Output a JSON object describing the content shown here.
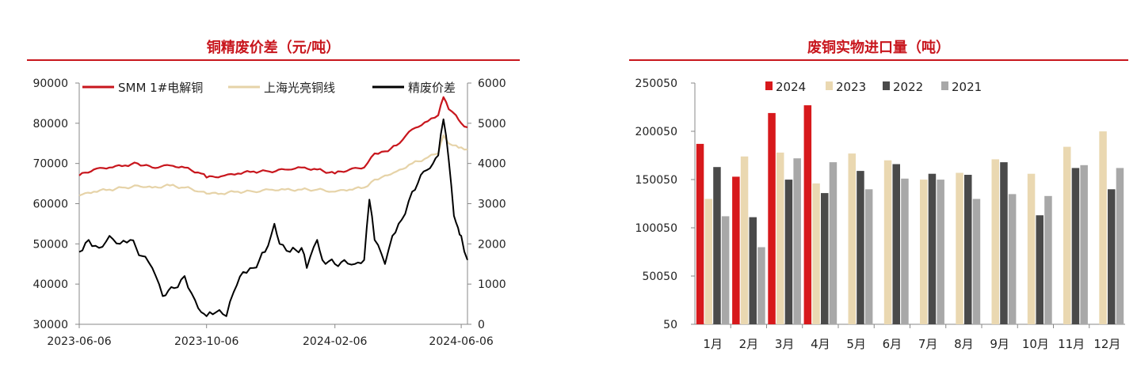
{
  "chart_data": [
    {
      "type": "line",
      "title": "铜精废价差（元/吨）",
      "x_ticks": [
        "2023-06-06",
        "2023-10-06",
        "2024-02-06",
        "2024-06-06"
      ],
      "x_range": [
        "2023-06-06",
        "2024-06-12"
      ],
      "y_left": {
        "min": 30000,
        "max": 90000,
        "ticks": [
          30000,
          40000,
          50000,
          60000,
          70000,
          80000,
          90000
        ]
      },
      "y_right": {
        "min": 0,
        "max": 6000,
        "ticks": [
          0,
          1000,
          2000,
          3000,
          4000,
          5000,
          6000
        ]
      },
      "legend_position": "top",
      "series": [
        {
          "name": "SMM 1#电解铜",
          "axis": "left",
          "color": "#c8161d",
          "points": [
            [
              "2023-06-06",
              67000
            ],
            [
              "2023-06-20",
              68500
            ],
            [
              "2023-07-05",
              69000
            ],
            [
              "2023-07-20",
              69500
            ],
            [
              "2023-08-01",
              70000
            ],
            [
              "2023-08-15",
              69000
            ],
            [
              "2023-09-01",
              69500
            ],
            [
              "2023-09-15",
              69000
            ],
            [
              "2023-10-01",
              67500
            ],
            [
              "2023-10-06",
              66500
            ],
            [
              "2023-10-20",
              66800
            ],
            [
              "2023-11-05",
              67500
            ],
            [
              "2023-11-20",
              68000
            ],
            [
              "2023-12-05",
              68000
            ],
            [
              "2023-12-20",
              68500
            ],
            [
              "2024-01-05",
              69000
            ],
            [
              "2024-01-20",
              68500
            ],
            [
              "2024-02-06",
              67500
            ],
            [
              "2024-02-20",
              68500
            ],
            [
              "2024-03-05",
              69000
            ],
            [
              "2024-03-15",
              72500
            ],
            [
              "2024-03-25",
              73000
            ],
            [
              "2024-04-05",
              74500
            ],
            [
              "2024-04-20",
              78500
            ],
            [
              "2024-05-05",
              80500
            ],
            [
              "2024-05-15",
              82000
            ],
            [
              "2024-05-20",
              86500
            ],
            [
              "2024-05-25",
              83500
            ],
            [
              "2024-06-01",
              82000
            ],
            [
              "2024-06-06",
              80000
            ],
            [
              "2024-06-12",
              79000
            ]
          ]
        },
        {
          "name": "上海光亮铜线",
          "axis": "left",
          "color": "#e6d3a8",
          "points": [
            [
              "2023-06-06",
              62000
            ],
            [
              "2023-06-20",
              63000
            ],
            [
              "2023-07-05",
              63500
            ],
            [
              "2023-07-20",
              64000
            ],
            [
              "2023-08-01",
              64500
            ],
            [
              "2023-08-15",
              64000
            ],
            [
              "2023-09-01",
              64500
            ],
            [
              "2023-09-15",
              64000
            ],
            [
              "2023-10-01",
              63000
            ],
            [
              "2023-10-06",
              62500
            ],
            [
              "2023-10-20",
              62500
            ],
            [
              "2023-11-05",
              63000
            ],
            [
              "2023-11-20",
              63000
            ],
            [
              "2023-12-05",
              63500
            ],
            [
              "2023-12-20",
              63500
            ],
            [
              "2024-01-05",
              63500
            ],
            [
              "2024-01-20",
              63500
            ],
            [
              "2024-02-06",
              63000
            ],
            [
              "2024-02-20",
              63500
            ],
            [
              "2024-03-05",
              64000
            ],
            [
              "2024-03-15",
              66000
            ],
            [
              "2024-03-25",
              67000
            ],
            [
              "2024-04-05",
              68000
            ],
            [
              "2024-04-20",
              70000
            ],
            [
              "2024-05-05",
              71500
            ],
            [
              "2024-05-15",
              72500
            ],
            [
              "2024-05-20",
              77000
            ],
            [
              "2024-05-25",
              75000
            ],
            [
              "2024-06-01",
              74500
            ],
            [
              "2024-06-06",
              74000
            ],
            [
              "2024-06-12",
              73500
            ]
          ]
        },
        {
          "name": "精废价差",
          "axis": "right",
          "color": "#000000",
          "points": [
            [
              "2023-06-06",
              1800
            ],
            [
              "2023-06-15",
              2100
            ],
            [
              "2023-06-25",
              1900
            ],
            [
              "2023-07-05",
              2200
            ],
            [
              "2023-07-15",
              2000
            ],
            [
              "2023-07-25",
              2100
            ],
            [
              "2023-08-05",
              1700
            ],
            [
              "2023-08-15",
              1400
            ],
            [
              "2023-08-25",
              700
            ],
            [
              "2023-09-05",
              900
            ],
            [
              "2023-09-15",
              1200
            ],
            [
              "2023-09-25",
              600
            ],
            [
              "2023-10-01",
              300
            ],
            [
              "2023-10-06",
              200
            ],
            [
              "2023-10-15",
              300
            ],
            [
              "2023-10-25",
              200
            ],
            [
              "2023-11-01",
              800
            ],
            [
              "2023-11-10",
              1300
            ],
            [
              "2023-11-20",
              1400
            ],
            [
              "2023-12-01",
              1800
            ],
            [
              "2023-12-10",
              2500
            ],
            [
              "2023-12-15",
              2000
            ],
            [
              "2023-12-25",
              1800
            ],
            [
              "2024-01-05",
              1900
            ],
            [
              "2024-01-10",
              1400
            ],
            [
              "2024-01-20",
              2100
            ],
            [
              "2024-01-25",
              1600
            ],
            [
              "2024-02-06",
              1500
            ],
            [
              "2024-02-15",
              1600
            ],
            [
              "2024-02-25",
              1500
            ],
            [
              "2024-03-05",
              1600
            ],
            [
              "2024-03-10",
              3100
            ],
            [
              "2024-03-15",
              2100
            ],
            [
              "2024-03-25",
              1500
            ],
            [
              "2024-04-01",
              2200
            ],
            [
              "2024-04-10",
              2600
            ],
            [
              "2024-04-20",
              3300
            ],
            [
              "2024-05-01",
              3800
            ],
            [
              "2024-05-10",
              4000
            ],
            [
              "2024-05-15",
              4200
            ],
            [
              "2024-05-20",
              5100
            ],
            [
              "2024-05-25",
              4100
            ],
            [
              "2024-05-30",
              2700
            ],
            [
              "2024-06-03",
              2400
            ],
            [
              "2024-06-06",
              2200
            ],
            [
              "2024-06-12",
              1600
            ]
          ]
        }
      ]
    },
    {
      "type": "bar",
      "title": "废铜实物进口量（吨）",
      "categories": [
        "1月",
        "2月",
        "3月",
        "4月",
        "5月",
        "6月",
        "7月",
        "8月",
        "9月",
        "10月",
        "11月",
        "12月"
      ],
      "y_range": [
        50,
        250050
      ],
      "y_ticks": [
        "50",
        "50050",
        "100050",
        "150050",
        "200050",
        "250050"
      ],
      "legend_position": "top",
      "series": [
        {
          "name": "2024",
          "color": "#d7191c",
          "values": [
            187000,
            153000,
            219000,
            227000,
            null,
            null,
            null,
            null,
            null,
            null,
            null,
            null
          ]
        },
        {
          "name": "2023",
          "color": "#ead8b1",
          "values": [
            130000,
            174000,
            178000,
            146000,
            177000,
            170000,
            150000,
            157000,
            171000,
            156000,
            184000,
            200000
          ]
        },
        {
          "name": "2022",
          "color": "#4a4a4a",
          "values": [
            163000,
            111000,
            150000,
            136000,
            159000,
            166000,
            156000,
            155000,
            168000,
            113000,
            162000,
            140000
          ]
        },
        {
          "name": "2021",
          "color": "#a8a8a8",
          "values": [
            112000,
            80000,
            172000,
            168000,
            140000,
            151000,
            150000,
            130000,
            135000,
            133000,
            165000,
            162000
          ]
        }
      ]
    }
  ]
}
